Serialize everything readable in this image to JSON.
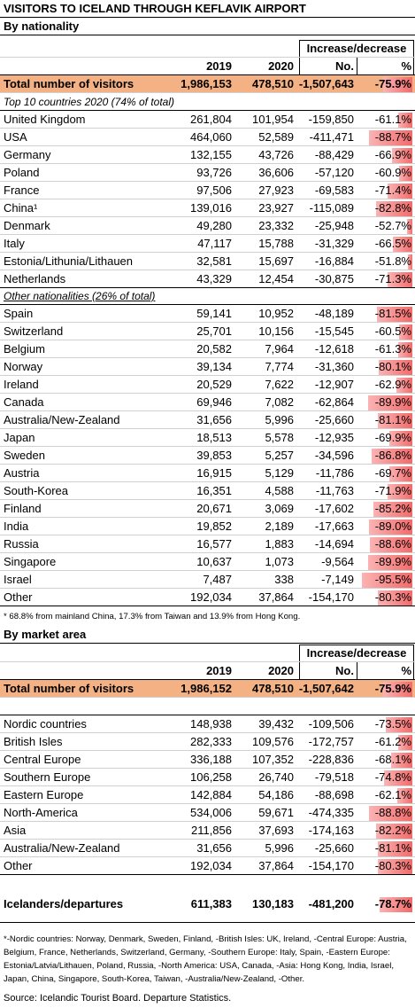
{
  "title": "VISITORS TO ICELAND THROUGH KEFLAVIK AIRPORT",
  "nationality": {
    "subtitle": "By nationality",
    "header_group": "Increase/decrease",
    "columns": [
      "2019",
      "2020",
      "No.",
      "%"
    ],
    "total": [
      "Total number of visitors",
      "1,986,153",
      "478,510",
      "-1,507,643",
      "-75.9%"
    ],
    "top10_heading": "Top 10 countries 2020 (74% of total)",
    "top10": [
      [
        "United Kingdom",
        "261,804",
        "101,954",
        "-159,850",
        "-61.1%"
      ],
      [
        "USA",
        "464,060",
        "52,589",
        "-411,471",
        "-88.7%"
      ],
      [
        "Germany",
        "132,155",
        "43,726",
        "-88,429",
        "-66.9%"
      ],
      [
        "Poland",
        "93,726",
        "36,606",
        "-57,120",
        "-60.9%"
      ],
      [
        "France",
        "97,506",
        "27,923",
        "-69,583",
        "-71.4%"
      ],
      [
        "China¹",
        "139,016",
        "23,927",
        "-115,089",
        "-82.8%"
      ],
      [
        "Denmark",
        "49,280",
        "23,332",
        "-25,948",
        "-52.7%"
      ],
      [
        "Italy",
        "47,117",
        "15,788",
        "-31,329",
        "-66.5%"
      ],
      [
        "Estonia/Lithunia/Lithauen",
        "32,581",
        "15,697",
        "-16,884",
        "-51.8%"
      ],
      [
        "Netherlands",
        "43,329",
        "12,454",
        "-30,875",
        "-71.3%"
      ]
    ],
    "other_heading": "Other nationalities (26% of total)",
    "others": [
      [
        "Spain",
        "59,141",
        "10,952",
        "-48,189",
        "-81.5%"
      ],
      [
        "Switzerland",
        "25,701",
        "10,156",
        "-15,545",
        "-60.5%"
      ],
      [
        "Belgium",
        "20,582",
        "7,964",
        "-12,618",
        "-61.3%"
      ],
      [
        "Norway",
        "39,134",
        "7,774",
        "-31,360",
        "-80.1%"
      ],
      [
        "Ireland",
        "20,529",
        "7,622",
        "-12,907",
        "-62.9%"
      ],
      [
        "Canada",
        "69,946",
        "7,082",
        "-62,864",
        "-89.9%"
      ],
      [
        "Australia/New-Zealand",
        "31,656",
        "5,996",
        "-25,660",
        "-81.1%"
      ],
      [
        "Japan",
        "18,513",
        "5,578",
        "-12,935",
        "-69.9%"
      ],
      [
        "Sweden",
        "39,853",
        "5,257",
        "-34,596",
        "-86.8%"
      ],
      [
        "Austria",
        "16,915",
        "5,129",
        "-11,786",
        "-69.7%"
      ],
      [
        "South-Korea",
        "16,351",
        "4,588",
        "-11,763",
        "-71.9%"
      ],
      [
        "Finland",
        "20,671",
        "3,069",
        "-17,602",
        "-85.2%"
      ],
      [
        "India",
        "19,852",
        "2,189",
        "-17,663",
        "-89.0%"
      ],
      [
        "Russia",
        "16,577",
        "1,883",
        "-14,694",
        "-88.6%"
      ],
      [
        "Singapore",
        "10,637",
        "1,073",
        "-9,564",
        "-89.9%"
      ],
      [
        "Israel",
        "7,487",
        "338",
        "-7,149",
        "-95.5%"
      ],
      [
        "Other",
        "192,034",
        "37,864",
        "-154,170",
        "-80.3%"
      ]
    ],
    "footnote": "* 68.8% from mainland China, 17.3% from Taiwan and 13.9% from Hong Kong."
  },
  "market": {
    "subtitle": "By market area",
    "header_group": "Increase/decrease",
    "columns": [
      "2019",
      "2020",
      "No.",
      "%"
    ],
    "total": [
      "Total number of visitors",
      "1,986,152",
      "478,510",
      "-1,507,642",
      "-75.9%"
    ],
    "rows": [
      [
        "Nordic countries",
        "148,938",
        "39,432",
        "-109,506",
        "-73.5%"
      ],
      [
        "British Isles",
        "282,333",
        "109,576",
        "-172,757",
        "-61.2%"
      ],
      [
        "Central Europe",
        "336,188",
        "107,352",
        "-228,836",
        "-68.1%"
      ],
      [
        "Southern Europe",
        "106,258",
        "26,740",
        "-79,518",
        "-74.8%"
      ],
      [
        "Eastern Europe",
        "142,884",
        "54,186",
        "-88,698",
        "-62.1%"
      ],
      [
        "North-America",
        "534,006",
        "59,671",
        "-474,335",
        "-88.8%"
      ],
      [
        "Asia",
        "211,856",
        "37,693",
        "-174,163",
        "-82.2%"
      ],
      [
        "Australia/New-Zealand",
        "31,656",
        "5,996",
        "-25,660",
        "-81.1%"
      ],
      [
        "Other",
        "192,034",
        "37,864",
        "-154,170",
        "-80.3%"
      ]
    ],
    "icelanders": [
      "Icelanders/departures",
      "611,383",
      "130,183",
      "-481,200",
      "-78.7%"
    ]
  },
  "notes": "*-Nordic countries: Norway, Denmark, Sweden, Finland, -British Isles: UK, Ireland, -Central Europe: Austria, Belgium, France, Netherlands, Switzerland, Germany, -Southern Europe: Italy, Spain, -Eastern Europe: Estonia/Latvia/Lithauen, Poland, Russia, -North America: USA, Canada, -Asia: Hong Kong, India, Israel, Japan, China, Singapore, South-Korea, Taiwan, -Australia/New-Zealand, -Other.",
  "source": "Source: Icelandic Tourist Board. Departure Statistics."
}
